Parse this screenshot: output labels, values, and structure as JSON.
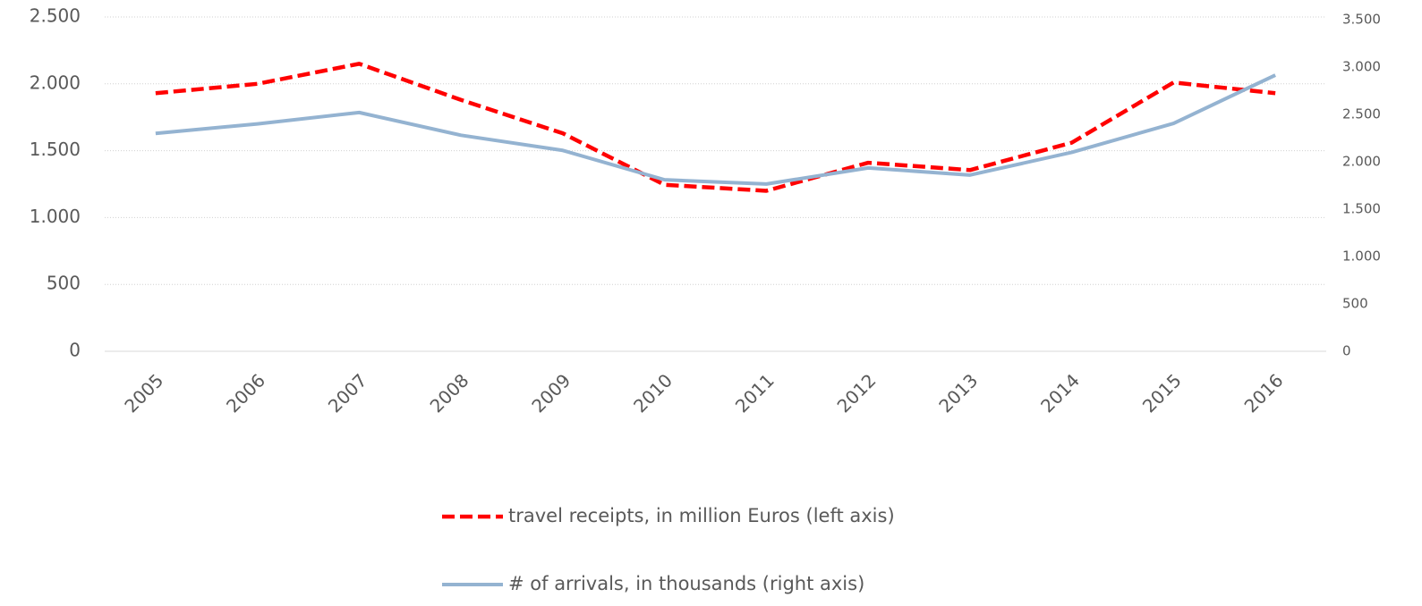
{
  "chart_data": {
    "type": "line",
    "categories": [
      "2005",
      "2006",
      "2007",
      "2008",
      "2009",
      "2010",
      "2011",
      "2012",
      "2013",
      "2014",
      "2015",
      "2016"
    ],
    "series": [
      {
        "name": "travel receipts, in million Euros (left axis)",
        "color": "#ff0000",
        "dash": true,
        "values": [
          1930,
          2000,
          2150,
          1880,
          1630,
          1245,
          1200,
          1410,
          1355,
          1560,
          2010,
          1930
        ]
      },
      {
        "name": "# of arrivals, in thousands (right axis)",
        "color": "#94b3d1",
        "axis": "y2",
        "values": [
          2300,
          2400,
          2520,
          2280,
          2120,
          1810,
          1765,
          1935,
          1860,
          2100,
          2405,
          2915
        ]
      }
    ],
    "ylim": [
      0,
      2500
    ],
    "yticks": [
      0,
      500,
      {
        "value": 1000,
        "label": "1.000"
      },
      {
        "value": 1500,
        "label": "1.500"
      },
      {
        "value": 2000,
        "label": "2.000"
      },
      {
        "value": 2500,
        "label": "2.500"
      }
    ],
    "y2lim": [
      0,
      3500
    ],
    "y2ticks": [
      0,
      500,
      {
        "value": 1000,
        "label": "1.000"
      },
      {
        "value": 1500,
        "label": "1.500"
      },
      {
        "value": 2000,
        "label": "2.000"
      },
      {
        "value": 2500,
        "label": "2.500"
      },
      {
        "value": 3000,
        "label": "3.000"
      },
      {
        "value": 3500,
        "label": "3.500"
      }
    ],
    "grid": true,
    "legend": "bottom"
  }
}
